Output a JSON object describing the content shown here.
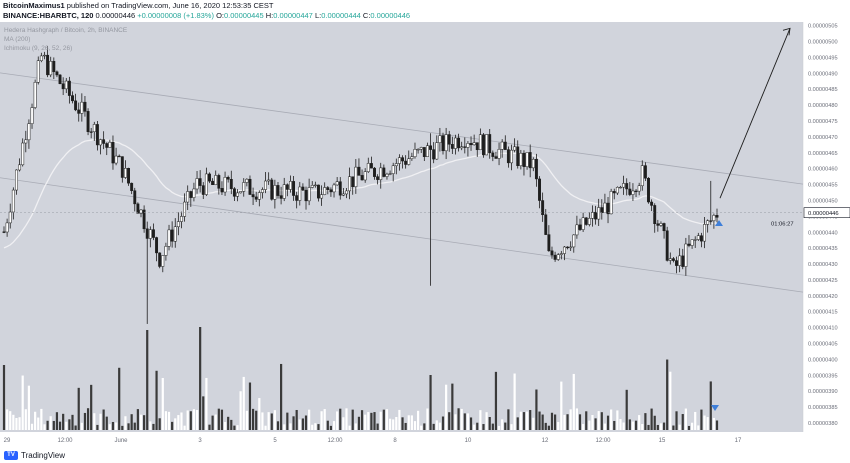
{
  "header": {
    "author": "BitcoinMaximus1",
    "published": "published on TradingView.com, June 16, 2020 12:53:35 CEST",
    "symbol": "BINANCE:HBARBTC, 120",
    "last": "0.00000446",
    "change": "+0.00000008 (+1.83%)",
    "o_label": "O:",
    "o": "0.00000445",
    "h_label": "H:",
    "h": "0.00000447",
    "l_label": "L:",
    "l": "0.00000444",
    "c_label": "C:",
    "c": "0.00000446"
  },
  "legend": {
    "title": "Hedera Hashgraph / Bitcoin, 2h, BINANCE",
    "ma": "MA (200)",
    "ichimoku": "Ichimoku (9, 26, 52, 26)"
  },
  "price_tag": {
    "price": "0.00000446",
    "countdown": "01:06:27"
  },
  "footer": {
    "brand": "TradingView"
  },
  "colors": {
    "plot_bg": "#d1d4dc",
    "candle": "#1e1e1e",
    "candle_up": "#ffffff",
    "ma_line": "#f0f0f3",
    "channel": "#a8abb5",
    "arrow": "#1e1e1e",
    "marker": "#3f7fd9"
  },
  "chart_data": {
    "type": "candlestick",
    "y_axis": {
      "range": [
        3.77e-06,
        5.06e-06
      ],
      "ticks": [
        "0.00000505",
        "0.00000500",
        "0.00000495",
        "0.00000490",
        "0.00000485",
        "0.00000480",
        "0.00000475",
        "0.00000470",
        "0.00000465",
        "0.00000460",
        "0.00000455",
        "0.00000450",
        "0.00000445",
        "0.00000440",
        "0.00000435",
        "0.00000430",
        "0.00000425",
        "0.00000420",
        "0.00000415",
        "0.00000410",
        "0.00000405",
        "0.00000400",
        "0.00000395",
        "0.00000390",
        "0.00000385",
        "0.00000380"
      ]
    },
    "x_axis": {
      "ticks": [
        "29",
        "12:00",
        "June",
        "3",
        "5",
        "12:00",
        "8",
        "10",
        "12",
        "12:00",
        "15",
        "17"
      ]
    },
    "price_anchors": [
      [
        "start",
        4.4e-06
      ],
      [
        "peak_left",
        4.95e-06
      ],
      [
        "pre_dump",
        4.6e-06
      ],
      [
        "dump_low",
        4.32e-06
      ],
      [
        "recovery",
        4.55e-06
      ],
      [
        "range_mid",
        4.52e-06
      ],
      [
        "spike_high",
        4.7e-06
      ],
      [
        "mid_high",
        4.61e-06
      ],
      [
        "dip_low",
        4.32e-06
      ],
      [
        "right_high",
        4.58e-06
      ],
      [
        "late_low",
        4.28e-06
      ],
      [
        "last",
        4.46e-06
      ]
    ],
    "channel": {
      "upper": [
        4.9e-06,
        4.55e-06
      ],
      "lower": [
        4.57e-06,
        4.21e-06
      ]
    },
    "projection_target": 5.04e-06
  }
}
